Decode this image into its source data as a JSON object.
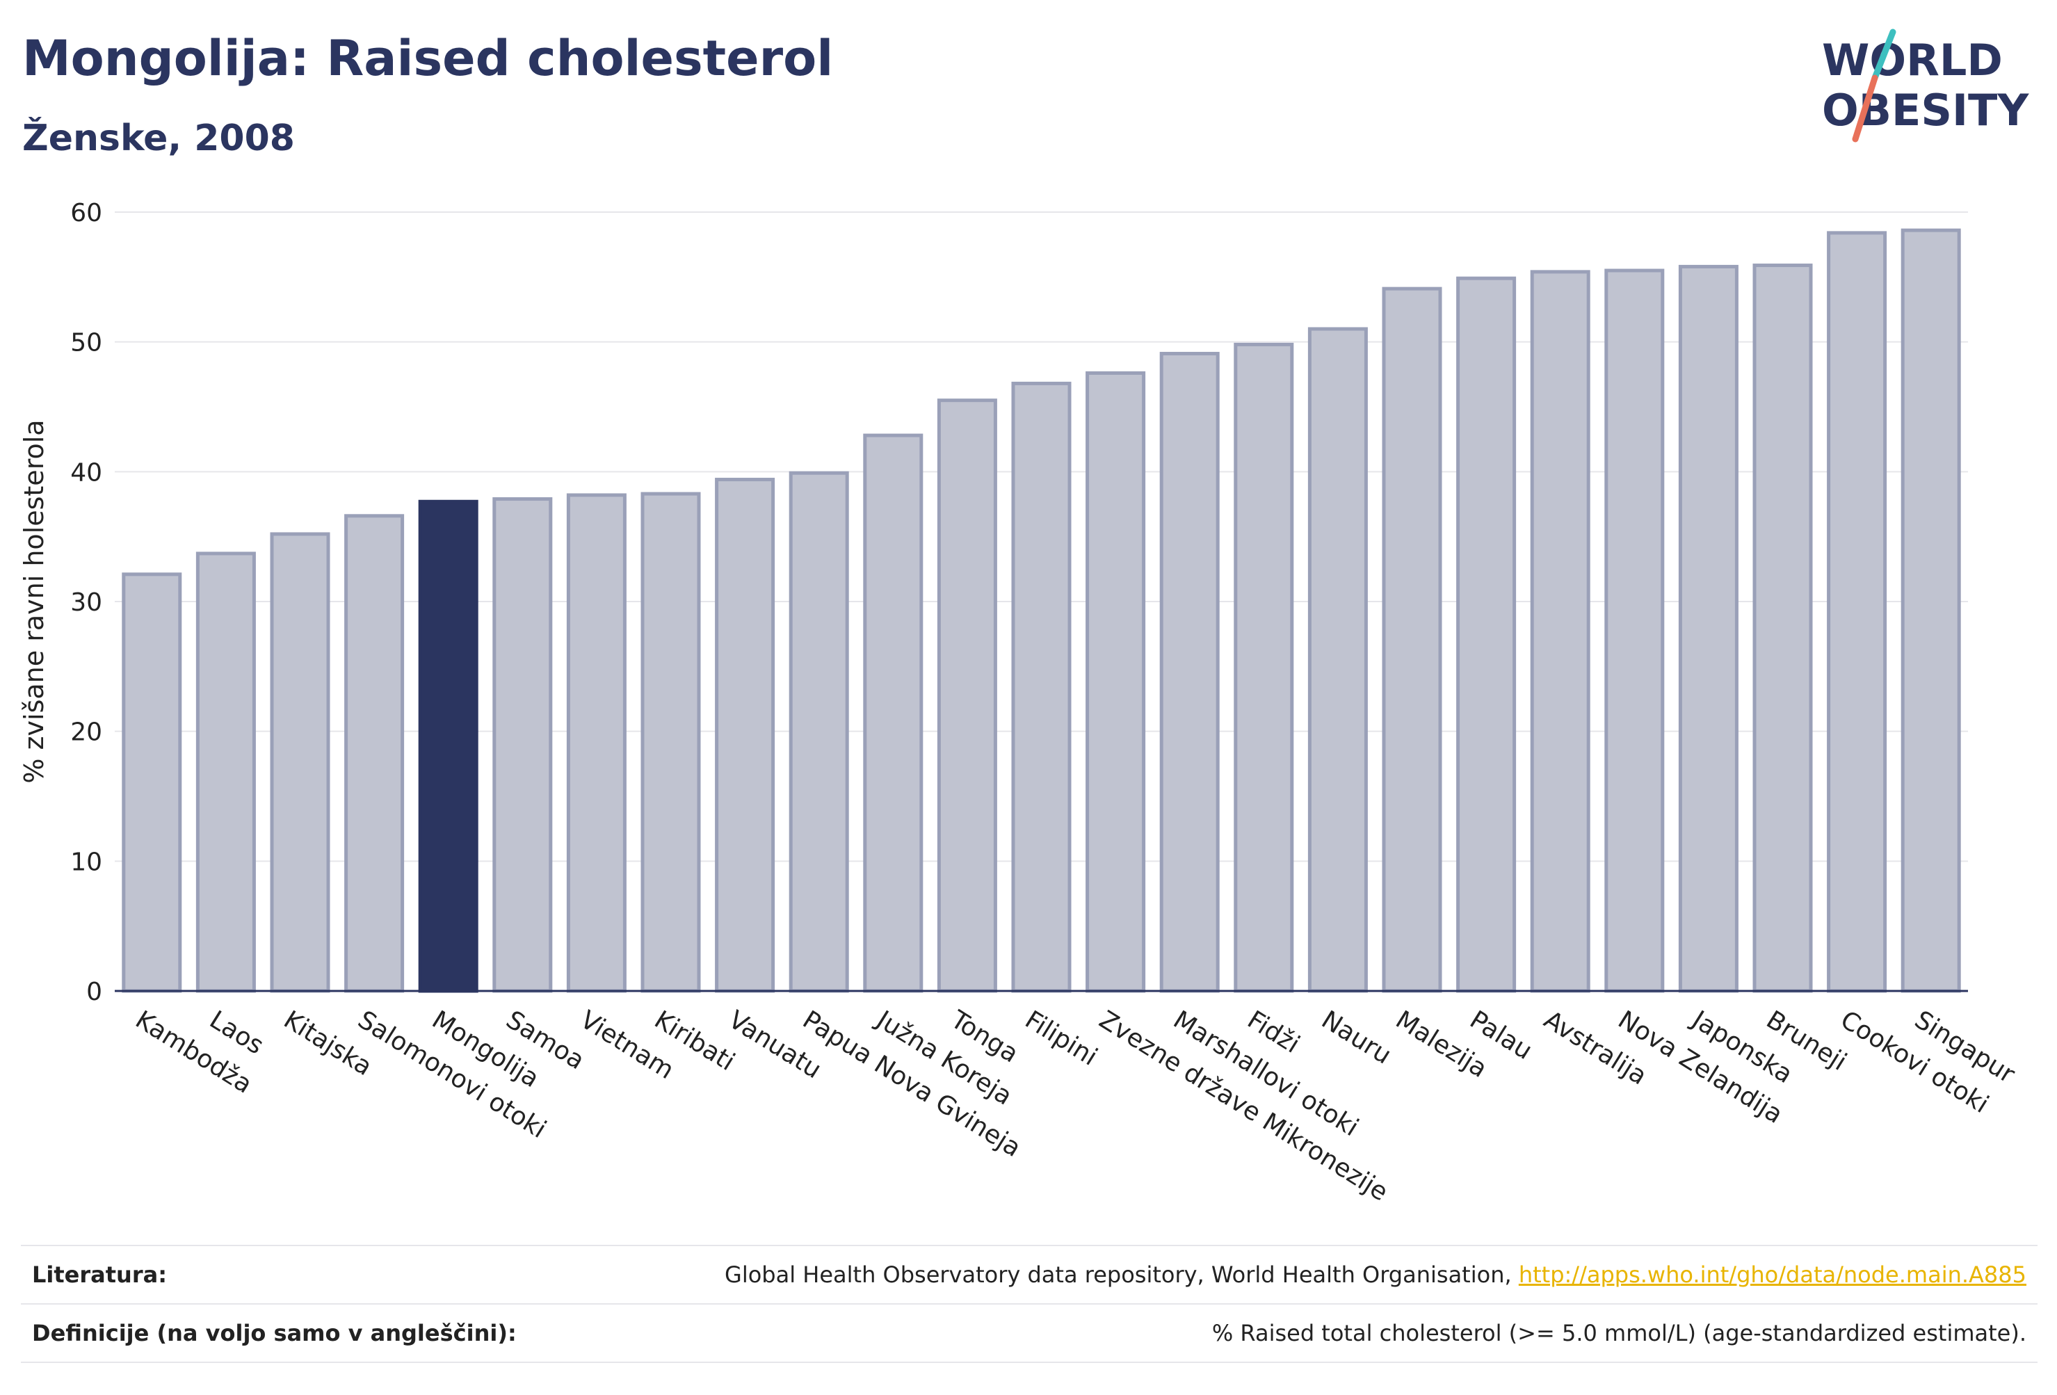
{
  "header": {
    "title": "Mongolija: Raised cholesterol",
    "subtitle": "Ženske, 2008"
  },
  "logo": {
    "line1": "WORLD",
    "line2": "OBESITY",
    "colors": {
      "text": "#2b3560",
      "slash_top": "#3dbfbf",
      "slash_bottom": "#e8715a"
    }
  },
  "chart_data": {
    "type": "bar",
    "ylabel": "% zvišane ravni holesterola",
    "xlabel": "",
    "ylim": [
      0,
      60
    ],
    "yticks": [
      0,
      10,
      20,
      30,
      40,
      50,
      60
    ],
    "grid": true,
    "highlight": "Mongolija",
    "colors": {
      "bar": "#c0c3d0",
      "bar_stroke": "#9aa0b8",
      "highlight": "#2b3560"
    },
    "categories": [
      "Kambodža",
      "Laos",
      "Kitajska",
      "Salomonovi otoki",
      "Mongolija",
      "Samoa",
      "Vietnam",
      "Kiribati",
      "Vanuatu",
      "Papua Nova Gvineja",
      "Južna Koreja",
      "Tonga",
      "Filipini",
      "Zvezne države Mikronezije",
      "Marshallovi otoki",
      "Fidži",
      "Nauru",
      "Malezija",
      "Palau",
      "Avstralija",
      "Nova Zelandija",
      "Japonska",
      "Bruneji",
      "Cookovi otoki",
      "Singapur"
    ],
    "values": [
      32.1,
      33.7,
      35.2,
      36.6,
      37.7,
      37.9,
      38.2,
      38.3,
      39.4,
      39.9,
      42.8,
      45.5,
      46.8,
      47.6,
      49.1,
      49.8,
      51.0,
      54.1,
      54.9,
      55.4,
      55.5,
      55.8,
      55.9,
      58.4,
      58.6
    ]
  },
  "footer": {
    "sources_label": "Literatura:",
    "sources_text": "Global Health Observatory data repository, World Health Organisation, ",
    "sources_link": "http://apps.who.int/gho/data/node.main.A885",
    "definition_label": "Definicije (na voljo samo v angleščini):",
    "definition_text": "% Raised total cholesterol (>= 5.0 mmol/L) (age-standardized estimate)."
  }
}
